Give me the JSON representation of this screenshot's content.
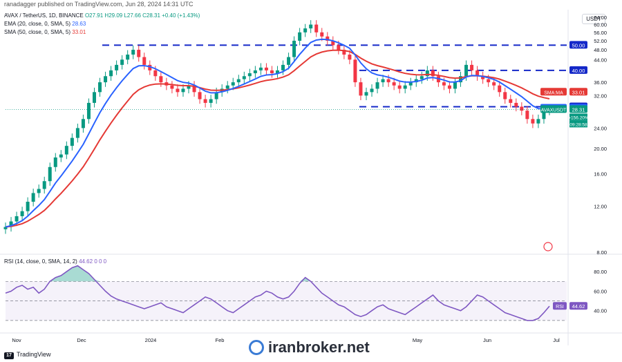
{
  "header": {
    "publisher": "ranadagger published on TradingView.com, Jun 28, 2024 14:31 UTC"
  },
  "legend": {
    "symbol": "AVAX / TetherUS, 1D, BINANCE",
    "ohlc": "O27.91 H29.09 L27.66 C28.31 +0.40 (+1.43%)",
    "ema": "EMA (20, close, 0, SMA, 5)",
    "ema_value": "28.63",
    "sma": "SMA (50, close, 0, SMA, 5)",
    "sma_value": "33.01",
    "rsi": "RSI (14, close, 0, SMA, 14, 2)",
    "rsi_value": "44.62",
    "rsi_vals2": "0 0 0"
  },
  "currency": "USDT",
  "colors": {
    "up": "#089981",
    "down": "#f23645",
    "ema": "#2962ff",
    "sma": "#e53935",
    "level": "#1428c8",
    "rsi": "#7e57c2"
  },
  "chart_data": [
    {
      "type": "candlestick",
      "title": "",
      "y_axis_labels": [
        "64.00",
        "60.00",
        "56.00",
        "52.00",
        "48.00",
        "44.00",
        "36.00",
        "32.00",
        "24.00",
        "20.00",
        "16.00",
        "12.00",
        "8.00"
      ],
      "x_axis_labels": [
        "Nov",
        "Dec",
        "2024",
        "Feb",
        "May",
        "Jun",
        "Jul"
      ],
      "ylim": [
        8,
        66
      ],
      "horizontal_levels": [
        50.0,
        40.0,
        29.0,
        27.5
      ],
      "price_tags": [
        {
          "label": "50.00",
          "value": 50.0
        },
        {
          "label": "40.00",
          "value": 40.0
        },
        {
          "label": "29.00",
          "value": 29.0
        },
        {
          "label": "SMA:MA",
          "value": 33.01,
          "text": "33.01"
        },
        {
          "label": "EMA",
          "value": 28.63,
          "text": "28.63"
        },
        {
          "label": "AVAXUSDT",
          "value": 28.31,
          "text": "28.31",
          "extra": [
            "+156.20%",
            "09:28:58"
          ]
        }
      ],
      "close_series": [
        10,
        10.5,
        11,
        11.5,
        12.5,
        13.5,
        14,
        15,
        17,
        18.5,
        19,
        20.5,
        22,
        24,
        26,
        30,
        33,
        36,
        38,
        40,
        42,
        44,
        46,
        48,
        45,
        42,
        40,
        38,
        36,
        35,
        34,
        33,
        34,
        35,
        33,
        31,
        30,
        31,
        33,
        34,
        35,
        36,
        37,
        38,
        39,
        40,
        41,
        40,
        39,
        40,
        42,
        45,
        52,
        56,
        58,
        60,
        56,
        54,
        52,
        50,
        48,
        46,
        44,
        36,
        32,
        33,
        34,
        36,
        37,
        36,
        35,
        34,
        35,
        36,
        37,
        38,
        40,
        38,
        36,
        35,
        34,
        36,
        38,
        42,
        40,
        38,
        37,
        36,
        35,
        33,
        31,
        30,
        29,
        28,
        26,
        25,
        26,
        28,
        28.31
      ]
    },
    {
      "type": "line",
      "title": "",
      "y_axis_labels": [
        "80.00",
        "60.00",
        "40.00"
      ],
      "levels": [
        70,
        50,
        30
      ],
      "ylim": [
        20,
        95
      ],
      "rsi_tag": {
        "label": "RSI",
        "text": "44.62",
        "value": 44.62
      },
      "values": [
        58,
        60,
        64,
        66,
        62,
        64,
        58,
        62,
        70,
        74,
        76,
        80,
        84,
        86,
        82,
        78,
        72,
        66,
        60,
        55,
        52,
        50,
        48,
        46,
        44,
        42,
        44,
        46,
        48,
        44,
        42,
        40,
        38,
        42,
        46,
        50,
        54,
        52,
        48,
        44,
        40,
        38,
        42,
        46,
        50,
        54,
        56,
        60,
        58,
        54,
        52,
        54,
        60,
        68,
        74,
        70,
        64,
        58,
        54,
        50,
        46,
        44,
        40,
        36,
        34,
        36,
        40,
        44,
        46,
        42,
        40,
        38,
        36,
        40,
        44,
        48,
        52,
        56,
        50,
        46,
        44,
        42,
        40,
        44,
        50,
        56,
        54,
        50,
        46,
        42,
        38,
        36,
        34,
        32,
        30,
        30,
        32,
        38,
        44.62
      ]
    }
  ],
  "footer": {
    "brand": "TradingView"
  },
  "watermark": "iranbroker.net"
}
